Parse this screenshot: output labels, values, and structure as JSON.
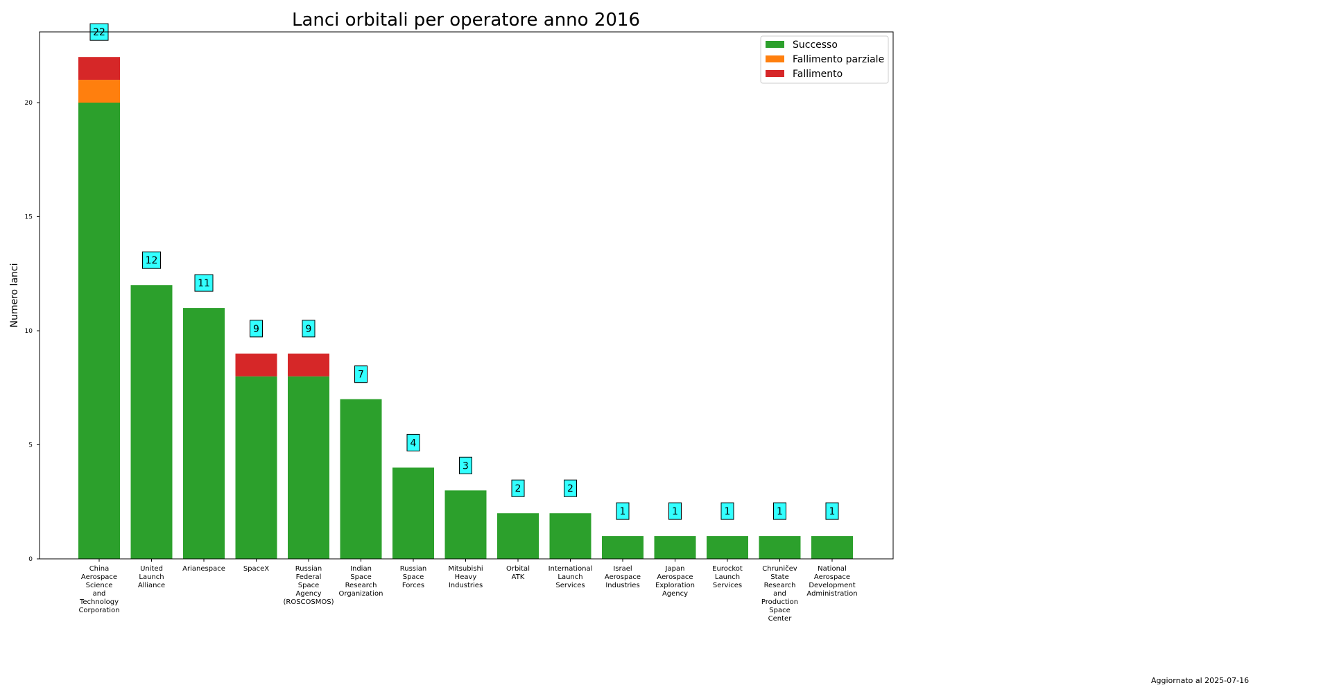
{
  "chart_data": {
    "type": "bar",
    "stacked": true,
    "title": "Lanci orbitali per operatore anno 2016",
    "xlabel": "",
    "ylabel": "Numero lanci",
    "ylim": [
      0,
      23.1
    ],
    "yticks": [
      0,
      5,
      10,
      15,
      20
    ],
    "grid": false,
    "legend_position": "top-right",
    "categories": [
      "China Aerospace Science and Technology Corporation",
      "United Launch Alliance",
      "Arianespace",
      "SpaceX",
      "Russian Federal Space Agency (ROSCOSMOS)",
      "Indian Space Research Organization",
      "Russian Space Forces",
      "Mitsubishi Heavy Industries",
      "Orbital ATK",
      "International Launch Services",
      "Israel Aerospace Industries",
      "Japan Aerospace Exploration Agency",
      "Eurockot Launch Services",
      "Chruničev State Research and Production Space Center",
      "National Aerospace Development Administration"
    ],
    "series": [
      {
        "name": "Successo",
        "color": "#2ca02c",
        "values": [
          20,
          12,
          11,
          8,
          8,
          7,
          4,
          3,
          2,
          2,
          1,
          1,
          1,
          1,
          1
        ]
      },
      {
        "name": "Fallimento parziale",
        "color": "#ff7f0e",
        "values": [
          1,
          0,
          0,
          0,
          0,
          0,
          0,
          0,
          0,
          0,
          0,
          0,
          0,
          0,
          0
        ]
      },
      {
        "name": "Fallimento",
        "color": "#d62728",
        "values": [
          1,
          0,
          0,
          1,
          1,
          0,
          0,
          0,
          0,
          0,
          0,
          0,
          0,
          0,
          0
        ]
      }
    ],
    "totals": [
      22,
      12,
      11,
      9,
      9,
      7,
      4,
      3,
      2,
      2,
      1,
      1,
      1,
      1,
      1
    ],
    "label_box_color": "#33ffff"
  },
  "footer": {
    "updated": "Aggiornato al 2025-07-16"
  }
}
